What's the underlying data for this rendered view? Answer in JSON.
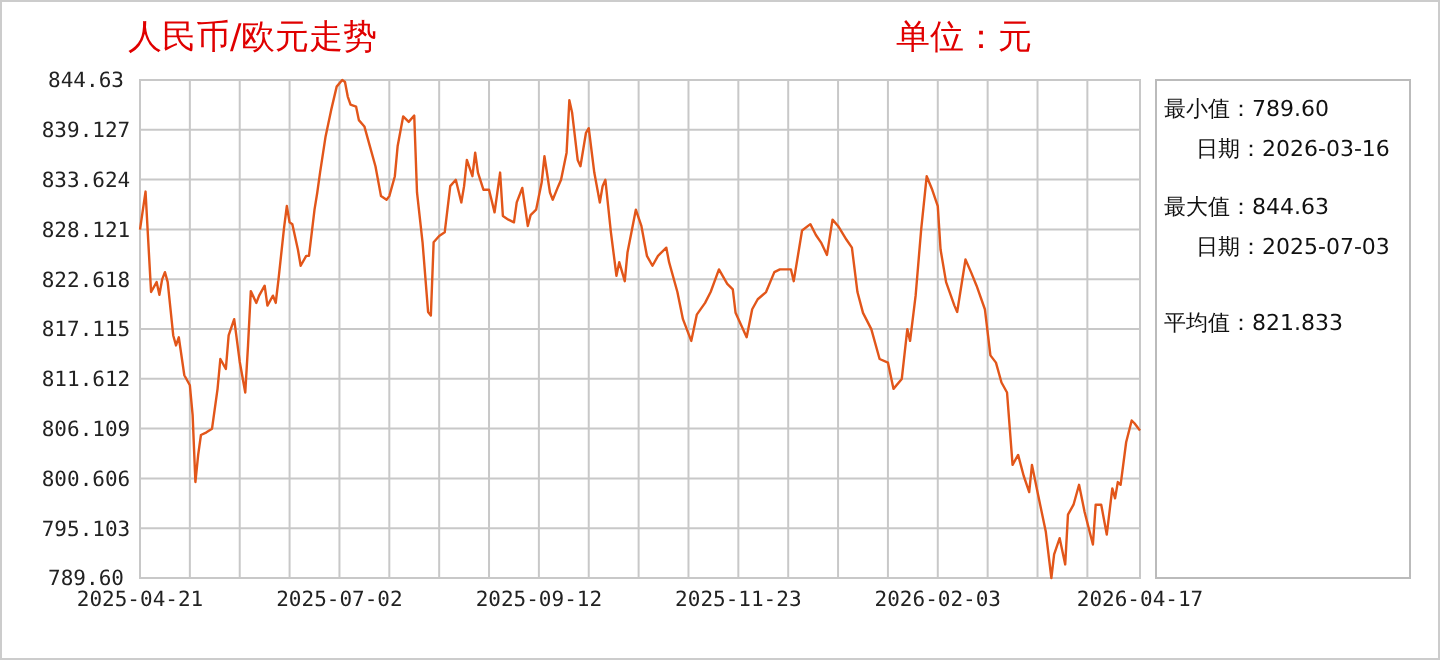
{
  "chart_data": {
    "type": "line",
    "title": "人民币/欧元走势",
    "subtitle": "单位：元",
    "annotations": [
      "最小值：789.60",
      "日期：2026-03-16",
      "最大值：844.63",
      "日期：2025-07-03",
      "平均值：821.833"
    ],
    "xlim": [
      "2025-04-21",
      "2026-04-17"
    ],
    "xticks": [
      {
        "value": "2025-04-21",
        "label": "2025-04-21"
      },
      {
        "value": "2025-05-09",
        "label": null
      },
      {
        "value": "2025-05-27",
        "label": null
      },
      {
        "value": "2025-06-14",
        "label": null
      },
      {
        "value": "2025-07-02",
        "label": "2025-07-02"
      },
      {
        "value": "2025-07-20",
        "label": null
      },
      {
        "value": "2025-08-07",
        "label": null
      },
      {
        "value": "2025-08-25",
        "label": null
      },
      {
        "value": "2025-09-12",
        "label": "2025-09-12"
      },
      {
        "value": "2025-09-30",
        "label": null
      },
      {
        "value": "2025-10-18",
        "label": null
      },
      {
        "value": "2025-11-05",
        "label": null
      },
      {
        "value": "2025-11-23",
        "label": "2025-11-23"
      },
      {
        "value": "2025-12-11",
        "label": null
      },
      {
        "value": "2025-12-29",
        "label": null
      },
      {
        "value": "2026-01-16",
        "label": null
      },
      {
        "value": "2026-02-03",
        "label": "2026-02-03"
      },
      {
        "value": "2026-02-21",
        "label": null
      },
      {
        "value": "2026-03-11",
        "label": null
      },
      {
        "value": "2026-03-29",
        "label": null
      },
      {
        "value": "2026-04-17",
        "label": "2026-04-17"
      }
    ],
    "ylim": [
      789.6,
      844.63
    ],
    "yticks": [
      {
        "value": 789.6,
        "label": "789.60"
      },
      795.103,
      800.606,
      806.109,
      811.612,
      817.115,
      822.618,
      828.121,
      833.624,
      839.127,
      844.63
    ],
    "grid": true,
    "marker": "none",
    "line_style": "solid",
    "series": [
      {
        "color": "#e2561a",
        "x": [
          "2025-04-21",
          "2025-04-23",
          "2025-04-24",
          "2025-04-25",
          "2025-04-27",
          "2025-04-28",
          "2025-04-29",
          "2025-04-30",
          "2025-05-01",
          "2025-05-03",
          "2025-05-04",
          "2025-05-05",
          "2025-05-07",
          "2025-05-09",
          "2025-05-10",
          "2025-05-11",
          "2025-05-12",
          "2025-05-13",
          "2025-05-15",
          "2025-05-17",
          "2025-05-19",
          "2025-05-20",
          "2025-05-22",
          "2025-05-23",
          "2025-05-25",
          "2025-05-27",
          "2025-05-29",
          "2025-05-30",
          "2025-05-31",
          "2025-06-02",
          "2025-06-03",
          "2025-06-05",
          "2025-06-06",
          "2025-06-08",
          "2025-06-09",
          "2025-06-10",
          "2025-06-12",
          "2025-06-13",
          "2025-06-14",
          "2025-06-15",
          "2025-06-17",
          "2025-06-18",
          "2025-06-20",
          "2025-06-21",
          "2025-06-23",
          "2025-06-24",
          "2025-06-25",
          "2025-06-27",
          "2025-06-29",
          "2025-07-01",
          "2025-07-03",
          "2025-07-04",
          "2025-07-05",
          "2025-07-06",
          "2025-07-08",
          "2025-07-09",
          "2025-07-11",
          "2025-07-13",
          "2025-07-15",
          "2025-07-17",
          "2025-07-19",
          "2025-07-20",
          "2025-07-22",
          "2025-07-23",
          "2025-07-25",
          "2025-07-27",
          "2025-07-29",
          "2025-07-30",
          "2025-08-01",
          "2025-08-03",
          "2025-08-04",
          "2025-08-05",
          "2025-08-07",
          "2025-08-09",
          "2025-08-11",
          "2025-08-13",
          "2025-08-15",
          "2025-08-16",
          "2025-08-17",
          "2025-08-19",
          "2025-08-20",
          "2025-08-21",
          "2025-08-23",
          "2025-08-25",
          "2025-08-27",
          "2025-08-28",
          "2025-08-29",
          "2025-08-30",
          "2025-09-01",
          "2025-09-03",
          "2025-09-04",
          "2025-09-06",
          "2025-09-08",
          "2025-09-09",
          "2025-09-11",
          "2025-09-13",
          "2025-09-14",
          "2025-09-16",
          "2025-09-17",
          "2025-09-19",
          "2025-09-20",
          "2025-09-22",
          "2025-09-23",
          "2025-09-24",
          "2025-09-26",
          "2025-09-27",
          "2025-09-29",
          "2025-09-30",
          "2025-10-02",
          "2025-10-04",
          "2025-10-05",
          "2025-10-06",
          "2025-10-08",
          "2025-10-10",
          "2025-10-11",
          "2025-10-13",
          "2025-10-14",
          "2025-10-17",
          "2025-10-19",
          "2025-10-21",
          "2025-10-23",
          "2025-10-25",
          "2025-10-28",
          "2025-10-29",
          "2025-11-01",
          "2025-11-03",
          "2025-11-06",
          "2025-11-08",
          "2025-11-11",
          "2025-11-13",
          "2025-11-16",
          "2025-11-19",
          "2025-11-21",
          "2025-11-22",
          "2025-11-26",
          "2025-11-28",
          "2025-11-30",
          "2025-12-03",
          "2025-12-06",
          "2025-12-08",
          "2025-12-12",
          "2025-12-13",
          "2025-12-16",
          "2025-12-19",
          "2025-12-21",
          "2025-12-23",
          "2025-12-25",
          "2025-12-27",
          "2025-12-29",
          "2026-01-01",
          "2026-01-03",
          "2026-01-05",
          "2026-01-07",
          "2026-01-10",
          "2026-01-13",
          "2026-01-16",
          "2026-01-18",
          "2026-01-21",
          "2026-01-23",
          "2026-01-24",
          "2026-01-26",
          "2026-01-28",
          "2026-01-30",
          "2026-02-01",
          "2026-02-03",
          "2026-02-04",
          "2026-02-06",
          "2026-02-09",
          "2026-02-10",
          "2026-02-13",
          "2026-02-15",
          "2026-02-17",
          "2026-02-20",
          "2026-02-22",
          "2026-02-24",
          "2026-02-26",
          "2026-02-28",
          "2026-03-02",
          "2026-03-04",
          "2026-03-06",
          "2026-03-08",
          "2026-03-09",
          "2026-03-11",
          "2026-03-14",
          "2026-03-16",
          "2026-03-17",
          "2026-03-19",
          "2026-03-21",
          "2026-03-22",
          "2026-03-24",
          "2026-03-26",
          "2026-03-28",
          "2026-03-31",
          "2026-04-01",
          "2026-04-03",
          "2026-04-05",
          "2026-04-07",
          "2026-04-08",
          "2026-04-09",
          "2026-04-10",
          "2026-04-12",
          "2026-04-14",
          "2026-04-15",
          "2026-04-17"
        ],
        "values": [
          828.1,
          832.3,
          826.7,
          821.2,
          822.3,
          820.9,
          822.6,
          823.4,
          822.3,
          816.4,
          815.3,
          816.2,
          812.0,
          810.9,
          807.6,
          800.2,
          803.2,
          805.4,
          805.7,
          806.1,
          810.5,
          813.8,
          812.7,
          816.4,
          818.2,
          813.5,
          810.1,
          815.3,
          821.3,
          820.0,
          820.8,
          821.9,
          819.7,
          820.8,
          820.0,
          822.6,
          828.3,
          830.7,
          828.9,
          828.7,
          825.9,
          824.1,
          825.2,
          825.2,
          830.3,
          832.2,
          834.4,
          838.4,
          841.3,
          843.9,
          844.63,
          844.4,
          842.8,
          841.9,
          841.7,
          840.2,
          839.5,
          837.3,
          835.1,
          831.8,
          831.4,
          831.8,
          834.0,
          837.3,
          840.6,
          840.0,
          840.7,
          832.2,
          826.7,
          819.0,
          818.6,
          826.7,
          827.4,
          827.8,
          832.9,
          833.6,
          831.1,
          832.9,
          835.8,
          834.0,
          836.6,
          834.4,
          832.5,
          832.5,
          830.0,
          832.2,
          834.4,
          829.6,
          829.2,
          828.9,
          831.1,
          832.7,
          828.5,
          829.7,
          830.3,
          833.3,
          836.2,
          832.2,
          831.4,
          832.9,
          833.6,
          836.6,
          842.4,
          841.0,
          835.8,
          835.1,
          838.8,
          839.3,
          834.4,
          831.1,
          832.9,
          833.6,
          827.8,
          823.0,
          824.5,
          822.4,
          825.6,
          830.3,
          828.5,
          825.2,
          824.1,
          825.2,
          826.1,
          824.5,
          821.2,
          818.2,
          815.8,
          818.7,
          820.0,
          821.2,
          823.7,
          822.1,
          821.5,
          818.9,
          816.2,
          819.3,
          820.4,
          821.2,
          823.4,
          823.7,
          823.7,
          822.4,
          828.0,
          828.7,
          827.5,
          826.6,
          825.3,
          829.2,
          828.5,
          827.0,
          826.1,
          821.2,
          818.9,
          817.1,
          813.8,
          813.4,
          810.5,
          811.6,
          817.1,
          815.8,
          820.8,
          828.1,
          834.0,
          832.5,
          830.7,
          825.9,
          822.3,
          819.7,
          819.0,
          824.8,
          823.4,
          821.9,
          819.3,
          814.2,
          813.4,
          811.2,
          810.1,
          802.1,
          803.2,
          800.9,
          799.1,
          802.1,
          799.1,
          794.7,
          789.6,
          792.2,
          794.0,
          791.1,
          796.6,
          797.7,
          799.9,
          796.9,
          793.3,
          797.7,
          797.7,
          794.4,
          799.5,
          798.4,
          800.2,
          799.9,
          804.6,
          807.0,
          806.7,
          805.9
        ]
      }
    ]
  }
}
